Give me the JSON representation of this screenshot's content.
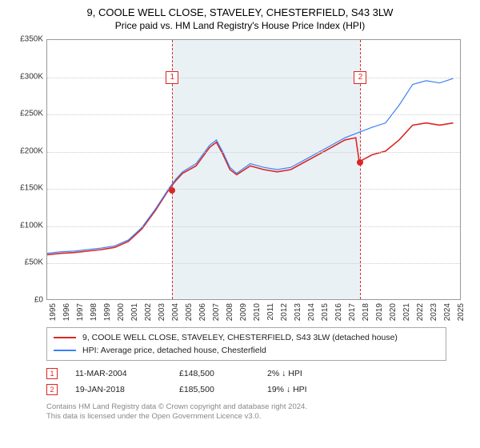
{
  "title": "9, COOLE WELL CLOSE, STAVELEY, CHESTERFIELD, S43 3LW",
  "subtitle": "Price paid vs. HM Land Registry's House Price Index (HPI)",
  "chart": {
    "type": "line",
    "background_color": "#ffffff",
    "shade_color": "#eaf1f5",
    "grid_color": "#cccccc",
    "border_color": "#999999",
    "xlim": [
      1995,
      2025.5
    ],
    "ylim": [
      0,
      350000
    ],
    "ytick_step": 50000,
    "yticks": [
      "£0",
      "£50K",
      "£100K",
      "£150K",
      "£200K",
      "£250K",
      "£300K",
      "£350K"
    ],
    "xticks": [
      "1995",
      "1996",
      "1997",
      "1998",
      "1999",
      "2000",
      "2001",
      "2002",
      "2003",
      "2004",
      "2005",
      "2006",
      "2007",
      "2008",
      "2009",
      "2010",
      "2011",
      "2012",
      "2013",
      "2014",
      "2015",
      "2016",
      "2017",
      "2018",
      "2019",
      "2020",
      "2021",
      "2022",
      "2023",
      "2024",
      "2025"
    ],
    "label_fontsize": 10,
    "series": [
      {
        "name": "red",
        "color": "#dc2626",
        "width": 1.6,
        "points": [
          [
            1995,
            60000
          ],
          [
            1996,
            62000
          ],
          [
            1997,
            63000
          ],
          [
            1998,
            65000
          ],
          [
            1999,
            67000
          ],
          [
            2000,
            70000
          ],
          [
            2001,
            78000
          ],
          [
            2002,
            95000
          ],
          [
            2003,
            120000
          ],
          [
            2004,
            148500
          ],
          [
            2004.5,
            160000
          ],
          [
            2005,
            170000
          ],
          [
            2006,
            180000
          ],
          [
            2007,
            205000
          ],
          [
            2007.5,
            212000
          ],
          [
            2008,
            195000
          ],
          [
            2008.5,
            175000
          ],
          [
            2009,
            168000
          ],
          [
            2010,
            180000
          ],
          [
            2011,
            175000
          ],
          [
            2012,
            172000
          ],
          [
            2013,
            175000
          ],
          [
            2014,
            185000
          ],
          [
            2015,
            195000
          ],
          [
            2016,
            205000
          ],
          [
            2017,
            215000
          ],
          [
            2017.8,
            218000
          ],
          [
            2018.05,
            185500
          ],
          [
            2018.5,
            190000
          ],
          [
            2019,
            195000
          ],
          [
            2020,
            200000
          ],
          [
            2021,
            215000
          ],
          [
            2022,
            235000
          ],
          [
            2023,
            238000
          ],
          [
            2024,
            235000
          ],
          [
            2025,
            238000
          ]
        ]
      },
      {
        "name": "blue",
        "color": "#3b82f6",
        "width": 1.2,
        "points": [
          [
            1995,
            62000
          ],
          [
            1996,
            64000
          ],
          [
            1997,
            65000
          ],
          [
            1998,
            67000
          ],
          [
            1999,
            69000
          ],
          [
            2000,
            72000
          ],
          [
            2001,
            80000
          ],
          [
            2002,
            97000
          ],
          [
            2003,
            122000
          ],
          [
            2004,
            150000
          ],
          [
            2004.5,
            162000
          ],
          [
            2005,
            172000
          ],
          [
            2006,
            183000
          ],
          [
            2007,
            208000
          ],
          [
            2007.5,
            215000
          ],
          [
            2008,
            198000
          ],
          [
            2008.5,
            178000
          ],
          [
            2009,
            170000
          ],
          [
            2010,
            183000
          ],
          [
            2011,
            178000
          ],
          [
            2012,
            175000
          ],
          [
            2013,
            178000
          ],
          [
            2014,
            188000
          ],
          [
            2015,
            198000
          ],
          [
            2016,
            208000
          ],
          [
            2017,
            218000
          ],
          [
            2018,
            225000
          ],
          [
            2019,
            232000
          ],
          [
            2020,
            238000
          ],
          [
            2021,
            262000
          ],
          [
            2022,
            290000
          ],
          [
            2023,
            295000
          ],
          [
            2024,
            292000
          ],
          [
            2025,
            298000
          ]
        ]
      }
    ],
    "markers": [
      {
        "n": "1",
        "x": 2004.2,
        "y": 148500,
        "label_y": 308000
      },
      {
        "n": "2",
        "x": 2018.05,
        "y": 185500,
        "label_y": 308000
      }
    ],
    "shade_from": 2004.2,
    "shade_to": 2018.05
  },
  "legend": [
    {
      "color": "#dc2626",
      "label": "9, COOLE WELL CLOSE, STAVELEY, CHESTERFIELD, S43 3LW (detached house)"
    },
    {
      "color": "#3b82f6",
      "label": "HPI: Average price, detached house, Chesterfield"
    }
  ],
  "sales": [
    {
      "n": "1",
      "date": "11-MAR-2004",
      "price": "£148,500",
      "diff": "2% ↓ HPI"
    },
    {
      "n": "2",
      "date": "19-JAN-2018",
      "price": "£185,500",
      "diff": "19% ↓ HPI"
    }
  ],
  "attrib1": "Contains HM Land Registry data © Crown copyright and database right 2024.",
  "attrib2": "This data is licensed under the Open Government Licence v3.0."
}
